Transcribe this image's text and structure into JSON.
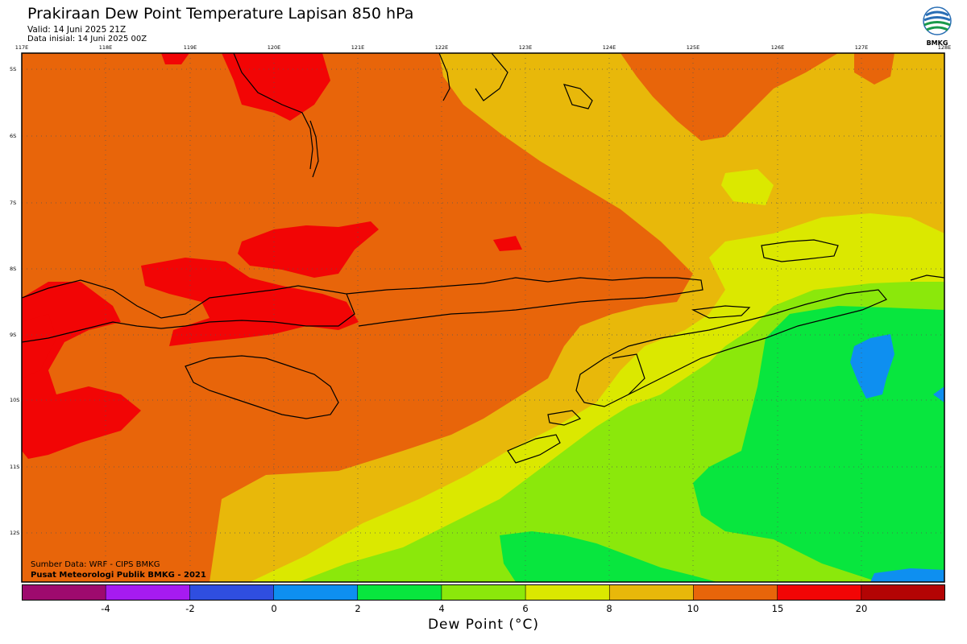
{
  "header": {
    "title": "Prakiraan Dew Point Temperature Lapisan 850 hPa",
    "valid": "Valid: 14 Juni 2025 21Z",
    "init": "Data inisial: 14 Juni 2025 00Z"
  },
  "logo": {
    "text": "BMKG",
    "icon": "bmkg-logo-icon"
  },
  "map": {
    "lon_labels": [
      "117E",
      "118E",
      "119E",
      "120E",
      "121E",
      "122E",
      "123E",
      "124E",
      "125E",
      "126E",
      "127E",
      "128E"
    ],
    "lat_labels": [
      "5S",
      "6S",
      "7S",
      "8S",
      "9S",
      "10S",
      "11S",
      "12S"
    ]
  },
  "credits": {
    "source": "Sumber Data: WRF - CIPS BMKG",
    "publisher": "Pusat Meteorologi Publik BMKG - 2021"
  },
  "colorbar": {
    "title": "Dew Point (°C)",
    "colors": [
      "#9e0a6e",
      "#a61bf0",
      "#2f4ee0",
      "#0e8ff0",
      "#08e63e",
      "#8be80b",
      "#dbe800",
      "#e8b80a",
      "#e8650a",
      "#f20505",
      "#b30404"
    ],
    "ticks": [
      "-4",
      "-2",
      "0",
      "2",
      "4",
      "6",
      "8",
      "10",
      "15",
      "20"
    ]
  }
}
